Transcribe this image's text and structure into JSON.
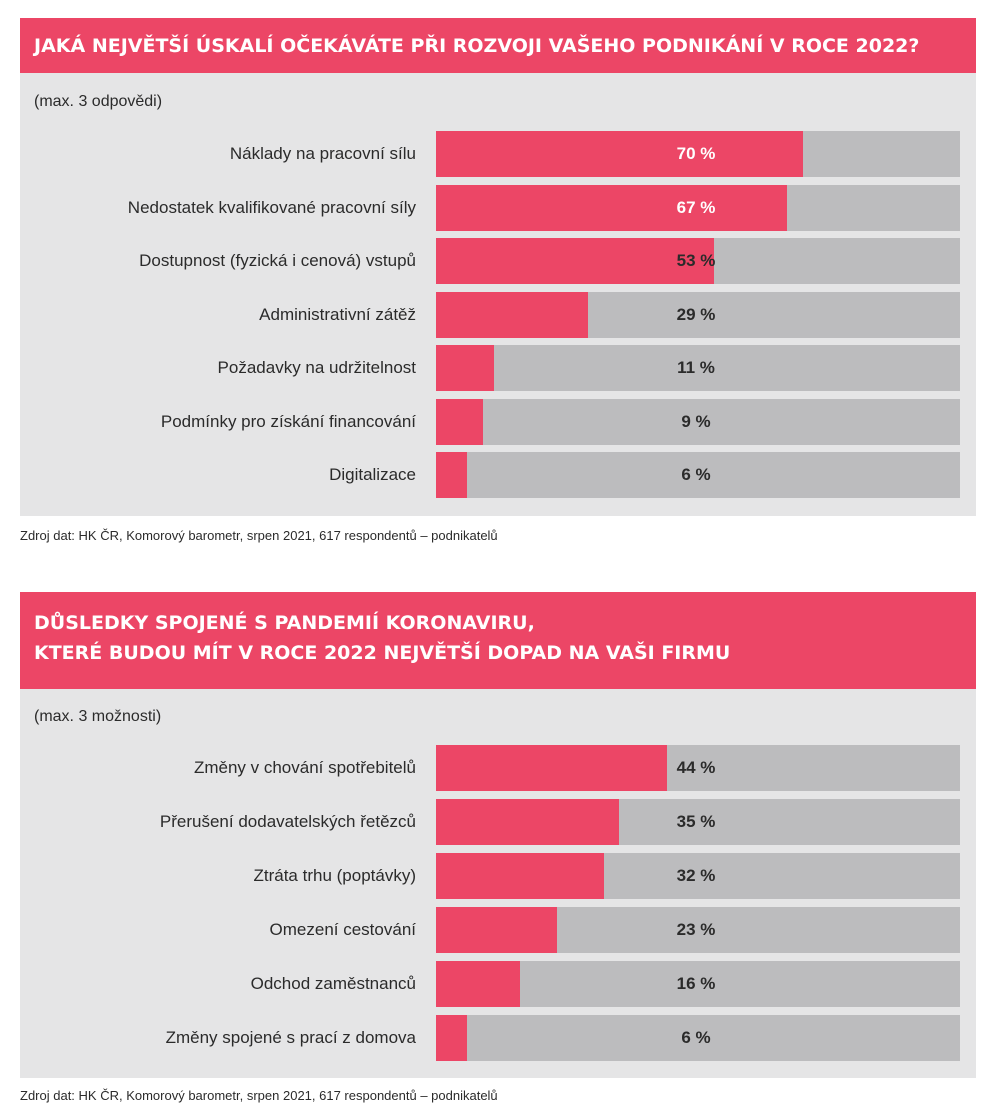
{
  "chart_data": [
    {
      "type": "bar",
      "title": "JAKÁ NEJVĚTŠÍ ÚSKALÍ OČEKÁVÁTE PŘI ROZVOJI VAŠEHO PODNIKÁNÍ V ROCE 2022?",
      "note": "(max. 3 odpovědi)",
      "categories": [
        "Náklady na pracovní sílu",
        "Nedostatek kvalifikované pracovní síly",
        "Dostupnost (fyzická i cenová) vstupů",
        "Administrativní zátěž",
        "Požadavky na udržitelnost",
        "Podmínky pro získání financování",
        "Digitalizace"
      ],
      "values": [
        70,
        67,
        53,
        29,
        11,
        9,
        6
      ],
      "value_labels": [
        "70 %",
        "67 %",
        "53 %",
        "29 %",
        "11 %",
        "9 %",
        "6 %"
      ],
      "xlim": [
        0,
        100
      ],
      "source": "Zdroj dat: HK ČR, Komorový barometr, srpen 2021, 617 respondentů – podnikatelů"
    },
    {
      "type": "bar",
      "title": "DŮSLEDKY SPOJENÉ S PANDEMIÍ KORONAVIRU, KTERÉ BUDOU MÍT V ROCE 2022 NEJVĚTŠÍ DOPAD NA VAŠI FIRMU",
      "title_lines": [
        "DŮSLEDKY SPOJENÉ S PANDEMIÍ KORONAVIRU,",
        "KTERÉ BUDOU MÍT V ROCE 2022 NEJVĚTŠÍ DOPAD NA VAŠI FIRMU"
      ],
      "note": "(max. 3 možnosti)",
      "categories": [
        "Změny v chování spotřebitelů",
        "Přerušení dodavatelských řetězců",
        "Ztráta trhu (poptávky)",
        "Omezení cestování",
        "Odchod zaměstnanců",
        "Změny spojené s prací z domova"
      ],
      "values": [
        44,
        35,
        32,
        23,
        16,
        6
      ],
      "value_labels": [
        "44 %",
        "35 %",
        "32 %",
        "23 %",
        "16 %",
        "6 %"
      ],
      "xlim": [
        0,
        100
      ],
      "source": "Zdroj dat: HK ČR, Komorový barometr, srpen 2021, 617 respondentů – podnikatelů"
    }
  ],
  "colors": {
    "accent": "#ec4666",
    "track": "#bcbcbe",
    "panel": "#e5e5e6"
  }
}
